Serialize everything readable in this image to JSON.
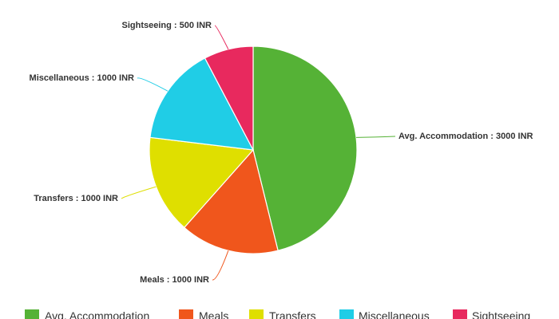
{
  "chart_data": {
    "type": "pie",
    "unit": "INR",
    "label_separator": " : ",
    "slices": [
      {
        "name": "Avg. Accommodation",
        "value": 3000,
        "color": "#55b236"
      },
      {
        "name": "Meals",
        "value": 1000,
        "color": "#f0561c"
      },
      {
        "name": "Transfers",
        "value": 1000,
        "color": "#dfdf00"
      },
      {
        "name": "Miscellaneous",
        "value": 1000,
        "color": "#20cde6"
      },
      {
        "name": "Sightseeing",
        "value": 500,
        "color": "#e8295e"
      }
    ],
    "legend": {
      "position": "bottom"
    }
  }
}
